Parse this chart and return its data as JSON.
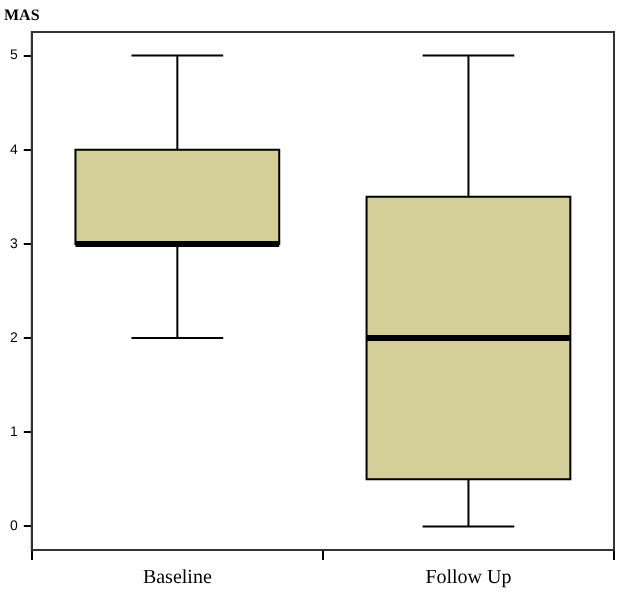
{
  "chart_data": {
    "type": "box",
    "ylabel": "MAS",
    "categories": [
      "Baseline",
      "Follow Up"
    ],
    "color": "#d4cf99",
    "boxes": [
      {
        "low": 2,
        "q1": 3,
        "median": 3,
        "q3": 4,
        "high": 5
      },
      {
        "low": 0,
        "q1": 0.5,
        "median": 2,
        "q3": 3.5,
        "high": 5
      }
    ],
    "ylim": [
      -0.25,
      5.25
    ],
    "yticks": [
      0,
      1,
      2,
      3,
      4,
      5
    ],
    "grid": false,
    "legend": false
  }
}
